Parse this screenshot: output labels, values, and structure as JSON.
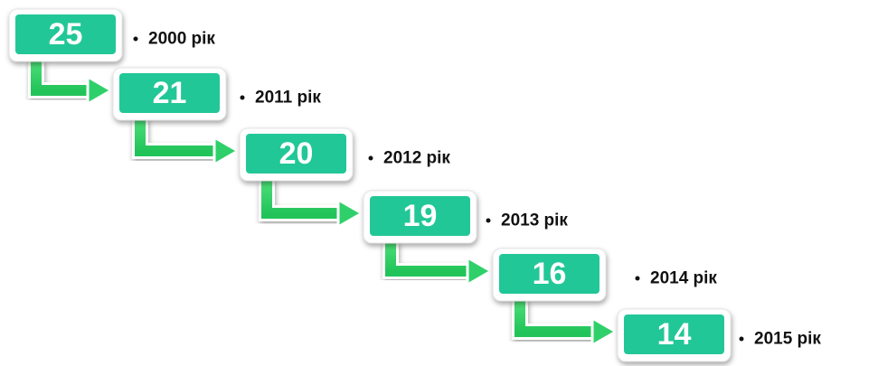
{
  "steps": [
    {
      "value": 25,
      "label": "2000 рік"
    },
    {
      "value": 21,
      "label": "2011 рік"
    },
    {
      "value": 20,
      "label": "2012 рік"
    },
    {
      "value": 19,
      "label": "2013 рік"
    },
    {
      "value": 16,
      "label": "2014 рік"
    },
    {
      "value": 14,
      "label": "2015 рік"
    }
  ]
}
